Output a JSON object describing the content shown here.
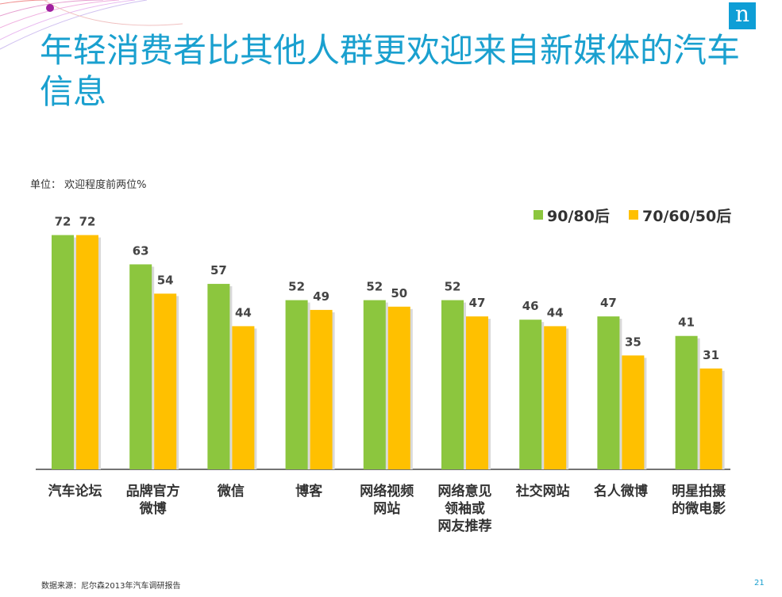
{
  "title": "年轻消费者比其他人群更欢迎来自新媒体的汽车信息",
  "unit_note": "单位： 欢迎程度前两位%",
  "source": "数据来源：尼尔森2013年汽车调研报告",
  "page_number": "21",
  "logo_glyph": "n",
  "colors": {
    "accent": "#1aa0cf",
    "series_young": "#8cc63e",
    "series_old": "#ffc000"
  },
  "chart_data": {
    "type": "bar",
    "title": "",
    "xlabel": "",
    "ylabel": "",
    "ylim": [
      0,
      80
    ],
    "grid": false,
    "legend_position": "top-right",
    "categories": [
      [
        "汽车论坛"
      ],
      [
        "品牌官方",
        "微博"
      ],
      [
        "微信"
      ],
      [
        "博客"
      ],
      [
        "网络视频",
        "网站"
      ],
      [
        "网络意见",
        "领袖或",
        "网友推荐"
      ],
      [
        "社交网站"
      ],
      [
        "名人微博"
      ],
      [
        "明星拍摄",
        "的微电影"
      ]
    ],
    "series": [
      {
        "name": "90/80后",
        "color": "#8cc63e",
        "values": [
          72,
          63,
          57,
          52,
          52,
          52,
          46,
          47,
          41
        ]
      },
      {
        "name": "70/60/50后",
        "color": "#ffc000",
        "values": [
          72,
          54,
          44,
          49,
          50,
          47,
          44,
          35,
          31
        ]
      }
    ]
  }
}
